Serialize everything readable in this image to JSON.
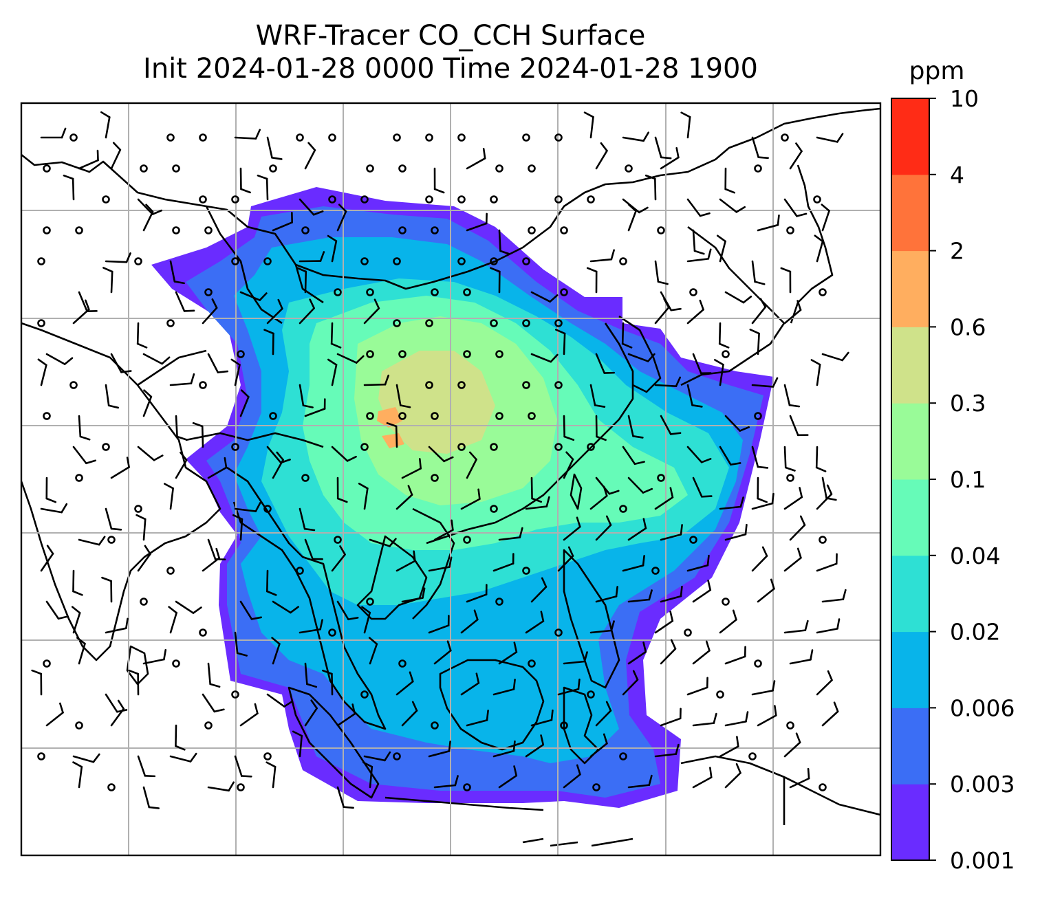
{
  "title": {
    "line1": "WRF-Tracer CO_CCH Surface",
    "line2": "Init 2024-01-28 0000 Time 2024-01-28 1900"
  },
  "colorbar": {
    "unit": "ppm",
    "levels": [
      "0.001",
      "0.003",
      "0.006",
      "0.02",
      "0.04",
      "0.1",
      "0.3",
      "0.6",
      "2",
      "4",
      "10"
    ],
    "colors": [
      "#6a2cff",
      "#3b6ef5",
      "#08b4ea",
      "#2ee0d4",
      "#66fbb8",
      "#99fb98",
      "#cfe28a",
      "#ffae5f",
      "#ff733a",
      "#ff2c16"
    ]
  },
  "map": {
    "field": "CO_CCH surface tracer concentration",
    "overlay": "surface wind barbs",
    "gridlines": true
  }
}
